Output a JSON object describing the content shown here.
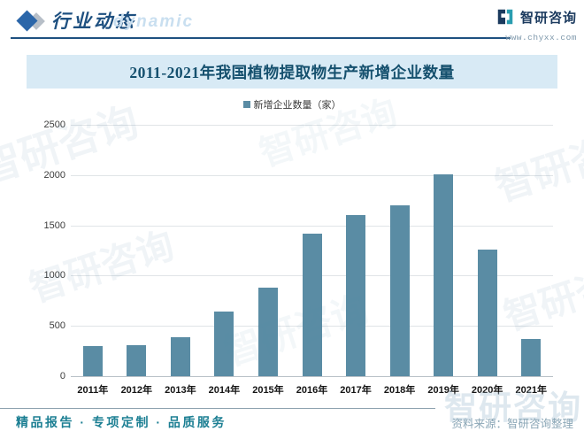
{
  "header": {
    "title": "行业动态",
    "watermark_text": "dynamic",
    "logo_text": "智研咨询",
    "logo_url": "www.chyxx.com"
  },
  "chart_data": {
    "type": "bar",
    "title": "2011-2021年我国植物提取物生产新增企业数量",
    "legend_label": "新增企业数量（家）",
    "categories": [
      "2011年",
      "2012年",
      "2013年",
      "2014年",
      "2015年",
      "2016年",
      "2017年",
      "2018年",
      "2019年",
      "2020年",
      "2021年"
    ],
    "values": [
      300,
      310,
      390,
      640,
      880,
      1420,
      1600,
      1700,
      2010,
      1260,
      370
    ],
    "ylim": [
      0,
      2500
    ],
    "y_ticks": [
      0,
      500,
      1000,
      1500,
      2000,
      2500
    ],
    "xlabel": "",
    "ylabel": "",
    "bar_color": "#5a8ca4",
    "grid": true,
    "legend_position": "top"
  },
  "footer": {
    "tagline": "精品报告 · 专项定制 · 品质服务",
    "source": "资料来源：智研咨询整理"
  },
  "watermarks": {
    "brand": "智研咨询"
  },
  "colors": {
    "accent_blue": "#1e5080",
    "bar": "#5a8ca4",
    "title_band_bg": "#d8eaf5",
    "title_text": "#15506e",
    "footer_teal": "#1c7f93",
    "logo_navy": "#1b3a5e",
    "logo_teal": "#2a9db0"
  }
}
